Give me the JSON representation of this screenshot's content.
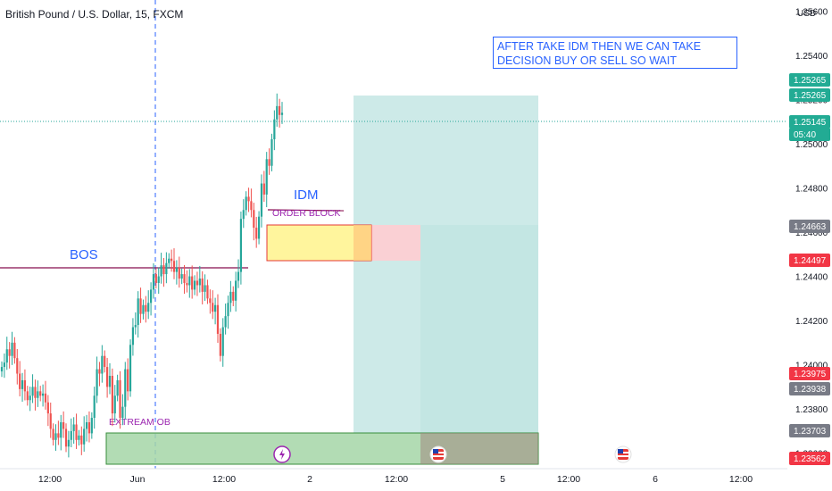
{
  "header": {
    "title": "British Pound / U.S. Dollar, 15, FXCM"
  },
  "axis": {
    "currency": "USD",
    "ticks": [
      "1.25600",
      "1.25400",
      "1.25200",
      "1.25000",
      "1.24800",
      "1.24600",
      "1.24400",
      "1.24200",
      "1.24000",
      "1.23800",
      "1.23600"
    ],
    "time_labels": [
      "12:00",
      "Jun",
      "12:00",
      "2",
      "12:00",
      "5",
      "12:00",
      "6",
      "12:00"
    ],
    "price_tags": [
      {
        "text": "1.25265",
        "color": "#22ab94"
      },
      {
        "text": "1.25265",
        "color": "#22ab94"
      },
      {
        "text": "1.25145",
        "color": "#22ab94"
      },
      {
        "text": "05:40",
        "color": "#22ab94"
      },
      {
        "text": "1.24663",
        "color": "#787b86"
      },
      {
        "text": "1.24497",
        "color": "#f23645"
      },
      {
        "text": "1.23975",
        "color": "#f23645"
      },
      {
        "text": "1.23938",
        "color": "#787b86"
      },
      {
        "text": "1.23703",
        "color": "#787b86"
      },
      {
        "text": "1.23562",
        "color": "#f23645"
      }
    ]
  },
  "annotations": {
    "bos": "BOS",
    "idm": "IDM",
    "order_block": "ORDER BLOCK",
    "extream_ob": "EXTREAM OB",
    "note_line1": "AFTER TAKE IDM  THEN WE CAN  TAKE",
    "note_line2": "DECISION  BUY OR SELL  SO WAIT"
  },
  "icons": {
    "event_lightning": "lightning-event-icon",
    "event_flag": "us-flag-event-icon"
  },
  "colors": {
    "up": "#26a69a",
    "down": "#ef5350",
    "target_zone": "#b2dfdb",
    "stop_zone": "#ffcdd2",
    "order_block": "#fff59d",
    "extream_ob": "#a5d6a7",
    "annotation_text": "#2962ff",
    "label_purple": "#9c27b0"
  },
  "chart_data": {
    "type": "candlestick",
    "symbol": "British Pound / U.S. Dollar",
    "timeframe": "15",
    "source": "FXCM",
    "ylim": [
      1.2353,
      1.2565
    ],
    "last_price": 1.25145,
    "series": [
      {
        "values": [
          1.2399,
          1.2401,
          1.2407,
          1.2404,
          1.241,
          1.2403,
          1.2396,
          1.2389,
          1.2393,
          1.2388,
          1.2384,
          1.2386,
          1.239,
          1.2385,
          1.2388,
          1.2386,
          1.2387,
          1.2383,
          1.2378,
          1.2371,
          1.2366,
          1.2369,
          1.2367,
          1.2374,
          1.2371,
          1.2363,
          1.2366,
          1.237,
          1.2373,
          1.2366,
          1.2368,
          1.2364,
          1.2371,
          1.2374,
          1.2369,
          1.2376,
          1.2386,
          1.2398,
          1.2396,
          1.2404,
          1.2399,
          1.239,
          1.2395,
          1.2378,
          1.2386,
          1.2393,
          1.2376,
          1.2381,
          1.2398,
          1.2388,
          1.2409,
          1.2417,
          1.2418,
          1.243,
          1.2423,
          1.2427,
          1.2424,
          1.2428,
          1.2434,
          1.2441,
          1.2437,
          1.244,
          1.2445,
          1.2441,
          1.2446,
          1.2448,
          1.2447,
          1.2442,
          1.2444,
          1.2439,
          1.2441,
          1.2437,
          1.2436,
          1.244,
          1.2434,
          1.2438,
          1.2436,
          1.2439,
          1.2433,
          1.2436,
          1.243,
          1.2428,
          1.2424,
          1.2427,
          1.2414,
          1.2404,
          1.2417,
          1.2422,
          1.2428,
          1.2433,
          1.2429,
          1.2438,
          1.2442,
          1.2466,
          1.247,
          1.2476,
          1.2474,
          1.247,
          1.2462,
          1.2457,
          1.2467,
          1.2482,
          1.2477,
          1.2493,
          1.249,
          1.2502,
          1.2511,
          1.2517,
          1.2513,
          1.2514
        ]
      }
    ],
    "levels": [
      {
        "label": "BOS",
        "price": 1.2449
      },
      {
        "label": "IDM",
        "price": 1.24725
      }
    ],
    "zones": [
      {
        "label": "ORDER BLOCK",
        "price_top": 1.24663,
        "price_bottom": 1.24497
      },
      {
        "label": "EXTREAM OB",
        "price_top": 1.23703,
        "price_bottom": 1.23562
      },
      {
        "label": "target",
        "price_top": 1.25265,
        "price_bottom": 1.23703
      },
      {
        "label": "stop",
        "price_top": 1.24663,
        "price_bottom": 1.24497
      }
    ]
  }
}
